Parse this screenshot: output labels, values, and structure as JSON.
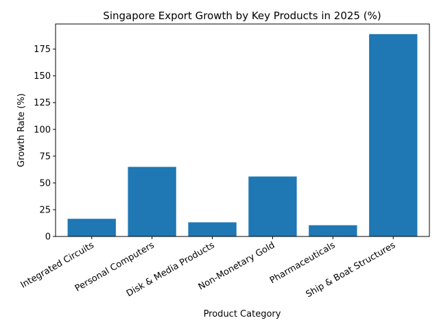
{
  "chart_data": {
    "type": "bar",
    "title": "Singapore Export Growth by Key Products in 2025 (%)",
    "xlabel": "Product Category",
    "ylabel": "Growth Rate (%)",
    "categories": [
      "Integrated Circuits",
      "Personal Computers",
      "Disk & Media Products",
      "Non-Monetary Gold",
      "Pharmaceuticals",
      "Ship & Boat Structures"
    ],
    "values": [
      16.5,
      65.0,
      13.2,
      56.0,
      10.5,
      189.0
    ],
    "ylim": [
      0,
      198.45
    ],
    "yticks": [
      0,
      25,
      50,
      75,
      100,
      125,
      150,
      175
    ],
    "bar_color": "#1f77b4",
    "grid": false,
    "legend": "none"
  }
}
